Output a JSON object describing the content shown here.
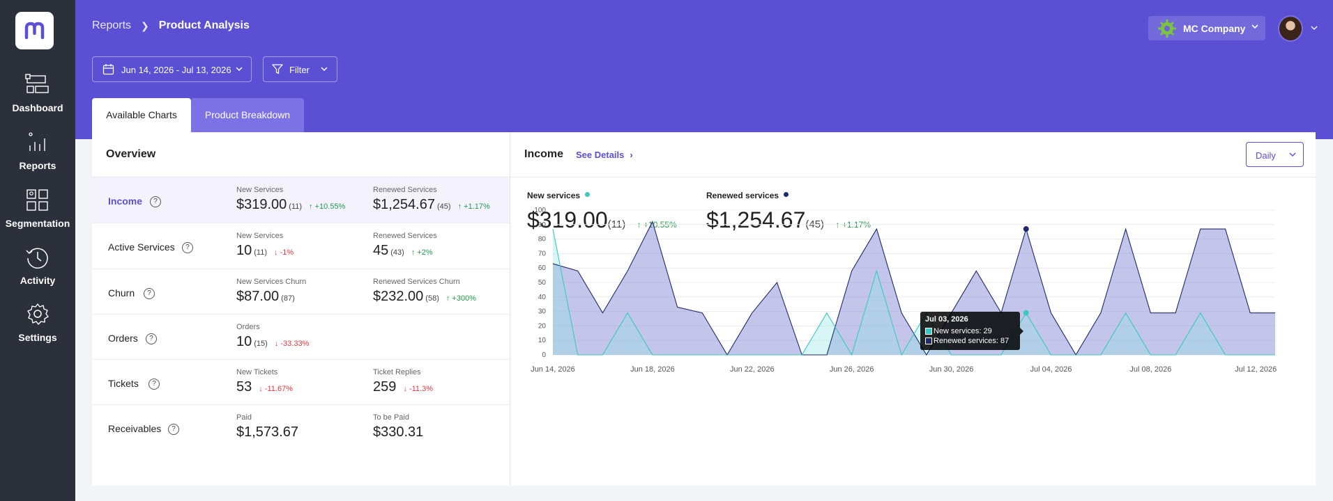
{
  "sidebar": {
    "logo_icon": "m-logo-icon",
    "items": [
      {
        "label": "Dashboard",
        "icon": "dashboard-icon"
      },
      {
        "label": "Reports",
        "icon": "reports-icon"
      },
      {
        "label": "Segmentation",
        "icon": "segmentation-icon"
      },
      {
        "label": "Activity",
        "icon": "activity-icon"
      },
      {
        "label": "Settings",
        "icon": "gear-icon"
      }
    ]
  },
  "header": {
    "breadcrumb": {
      "parent": "Reports",
      "current": "Product Analysis"
    },
    "company": "MC Company",
    "date_range": "Jun 14, 2026 - Jul 13, 2026",
    "filter_label": "Filter",
    "tabs": [
      {
        "label": "Available Charts",
        "active": false
      },
      {
        "label": "Product Breakdown",
        "active": true
      }
    ],
    "accent_color": "#5b4fd4"
  },
  "overview": {
    "title": "Overview",
    "rows": [
      {
        "name": "Income",
        "active": true,
        "cols": [
          {
            "label": "New Services",
            "value": "$319.00",
            "count": "(11)",
            "change": "+10.55%",
            "dir": "up"
          },
          {
            "label": "Renewed Services",
            "value": "$1,254.67",
            "count": "(45)",
            "change": "+1.17%",
            "dir": "up"
          }
        ]
      },
      {
        "name": "Active Services",
        "active": false,
        "cols": [
          {
            "label": "New Services",
            "value": "10",
            "count": "(11)",
            "change": "-1%",
            "dir": "down"
          },
          {
            "label": "Renewed Services",
            "value": "45",
            "count": "(43)",
            "change": "+2%",
            "dir": "up"
          }
        ]
      },
      {
        "name": "Churn",
        "active": false,
        "cols": [
          {
            "label": "New Services Churn",
            "value": "$87.00",
            "count": "(87)",
            "change": "",
            "dir": ""
          },
          {
            "label": "Renewed Services Churn",
            "value": "$232.00",
            "count": "(58)",
            "change": "+300%",
            "dir": "up"
          }
        ]
      },
      {
        "name": "Orders",
        "active": false,
        "cols": [
          {
            "label": "Orders",
            "value": "10",
            "count": "(15)",
            "change": "-33.33%",
            "dir": "down"
          }
        ]
      },
      {
        "name": "Tickets",
        "active": false,
        "cols": [
          {
            "label": "New Tickets",
            "value": "53",
            "count": "",
            "change": "-11.67%",
            "dir": "down"
          },
          {
            "label": "Ticket Replies",
            "value": "259",
            "count": "",
            "change": "-11.3%",
            "dir": "down"
          }
        ]
      },
      {
        "name": "Receivables",
        "active": false,
        "cols": [
          {
            "label": "Paid",
            "value": "$1,573.67",
            "count": "",
            "change": "",
            "dir": ""
          },
          {
            "label": "To be Paid",
            "value": "$330.31",
            "count": "",
            "change": "",
            "dir": ""
          }
        ]
      }
    ]
  },
  "income": {
    "title": "Income",
    "see_details": "See Details",
    "period": "Daily",
    "new_services": {
      "label": "New services",
      "value": "$319.00",
      "count": "(11)",
      "change": "+10.55%"
    },
    "renewed_services": {
      "label": "Renewed services",
      "value": "$1,254.67",
      "count": "(45)",
      "change": "+1.17%"
    },
    "tooltip": {
      "date": "Jul 03, 2026",
      "new_line": "New services: 29",
      "renewed_line": "Renewed services: 87"
    }
  },
  "chart_data": {
    "type": "area",
    "x": [
      "Jun 14",
      "Jun 15",
      "Jun 16",
      "Jun 17",
      "Jun 18",
      "Jun 19",
      "Jun 20",
      "Jun 21",
      "Jun 22",
      "Jun 23",
      "Jun 24",
      "Jun 25",
      "Jun 26",
      "Jun 27",
      "Jun 28",
      "Jun 29",
      "Jun 30",
      "Jul 01",
      "Jul 02",
      "Jul 03",
      "Jul 04",
      "Jul 05",
      "Jul 06",
      "Jul 07",
      "Jul 08",
      "Jul 09",
      "Jul 10",
      "Jul 11",
      "Jul 12",
      "Jul 13"
    ],
    "x_tick_labels": [
      "Jun 14, 2026",
      "Jun 18, 2026",
      "Jun 22, 2026",
      "Jun 26, 2026",
      "Jun 30, 2026",
      "Jul 04, 2026",
      "Jul 08, 2026",
      "Jul 12, 2026"
    ],
    "series": [
      {
        "name": "New services",
        "color": "#3cc7c1",
        "values": [
          87,
          0,
          0,
          29,
          0,
          0,
          0,
          0,
          0,
          0,
          0,
          29,
          0,
          58,
          0,
          29,
          0,
          0,
          0,
          29,
          0,
          0,
          0,
          29,
          0,
          0,
          29,
          0,
          0,
          0
        ]
      },
      {
        "name": "Renewed services",
        "color": "#1f2a6b",
        "values": [
          63,
          58,
          29,
          58,
          92,
          33,
          29,
          0,
          29,
          50,
          0,
          0,
          58,
          87,
          29,
          0,
          29,
          58,
          29,
          87,
          29,
          0,
          29,
          87,
          29,
          29,
          87,
          87,
          29,
          29
        ]
      }
    ],
    "ylim": [
      0,
      100
    ],
    "y_ticks": [
      0,
      10,
      20,
      30,
      40,
      50,
      60,
      70,
      80,
      90,
      100
    ],
    "grid": true,
    "highlight_index": 19
  }
}
